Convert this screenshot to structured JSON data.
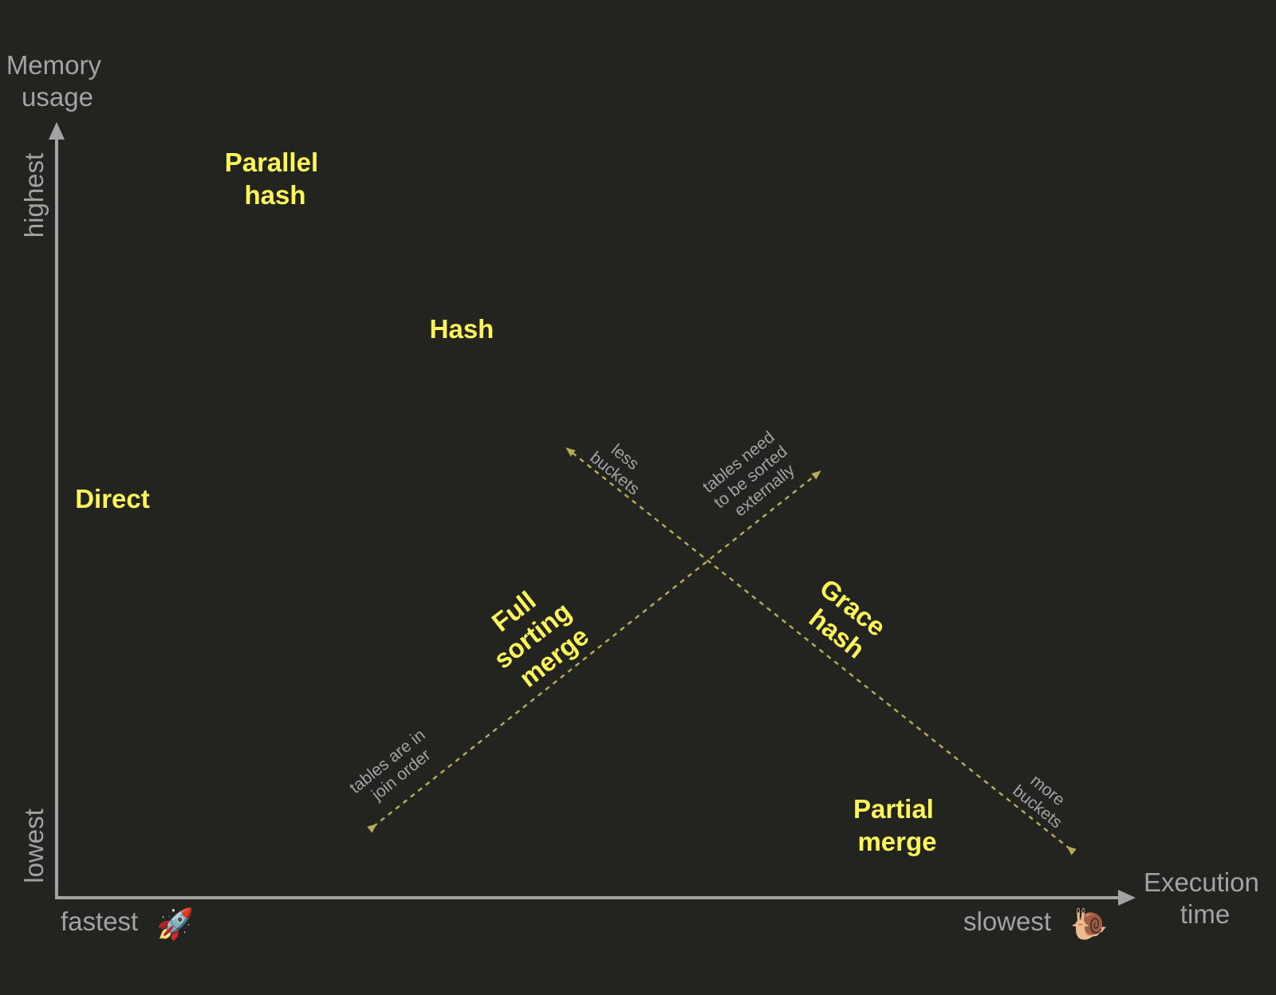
{
  "colors": {
    "background": "#232320",
    "algorithm_label": "#fdf65a",
    "axis": "#a3a3a3",
    "trend_arrow": "#b3ab55"
  },
  "axes": {
    "y_title": [
      "Memory",
      "usage"
    ],
    "y_high": "highest",
    "y_low": "lowest",
    "x_title": [
      "Execution",
      "time"
    ],
    "x_fast": "fastest",
    "x_slow": "slowest",
    "fast_icon": "rocket-icon",
    "slow_icon": "snail-icon",
    "fast_emoji": "🚀",
    "slow_emoji": "🐌"
  },
  "algorithms": {
    "parallel_hash": [
      "Parallel",
      "hash"
    ],
    "hash": "Hash",
    "direct": "Direct",
    "full_sorting_merge": [
      "Full",
      "sorting",
      "merge"
    ],
    "grace_hash": [
      "Grace",
      "hash"
    ],
    "partial_merge": [
      "Partial",
      "merge"
    ]
  },
  "annotations": {
    "less_buckets": [
      "less",
      "buckets"
    ],
    "more_buckets": [
      "more",
      "buckets"
    ],
    "sorted_externally": [
      "tables need",
      "to be sorted",
      "externally"
    ],
    "join_order": [
      "tables are in",
      "join order"
    ]
  }
}
